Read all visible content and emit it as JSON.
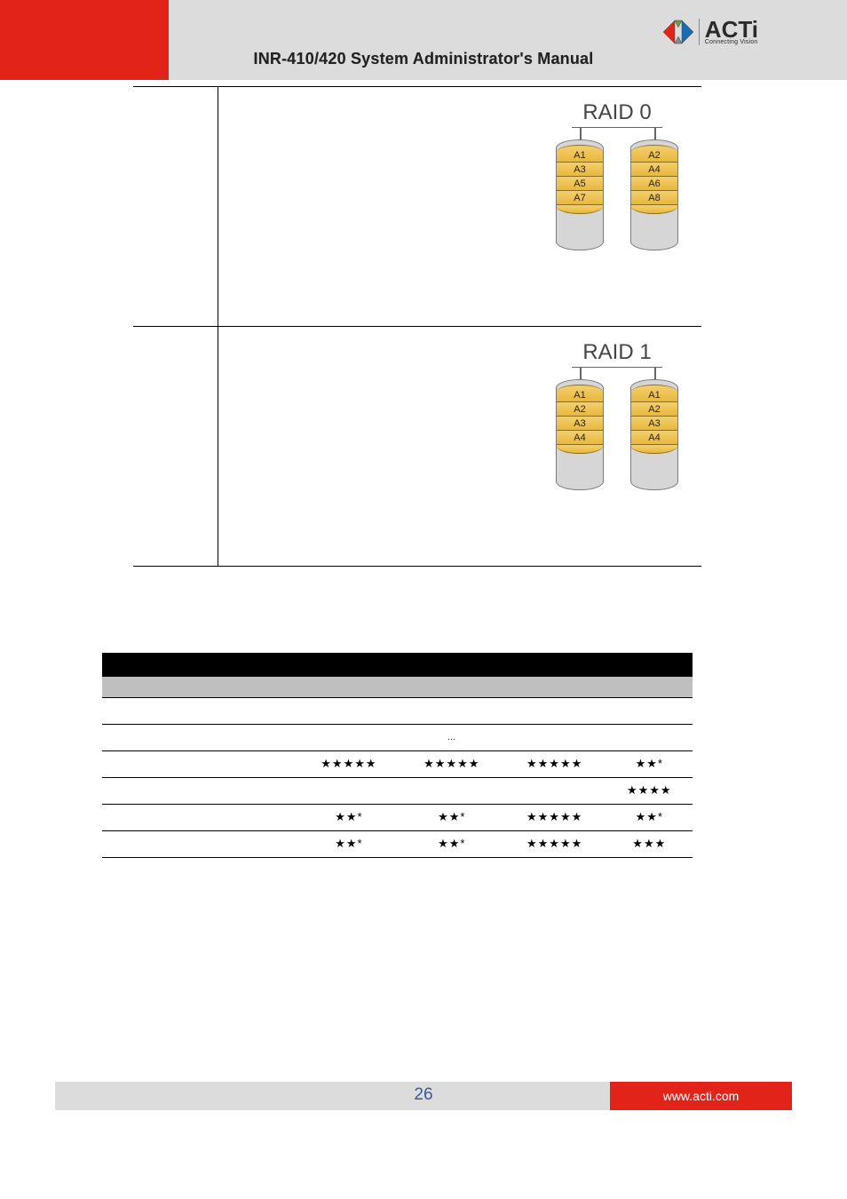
{
  "header": {
    "title": "INR-410/420 System Administrator's Manual",
    "logo_text": "ACTi",
    "logo_tagline": "Connecting Vision"
  },
  "raid_levels": [
    {
      "title": "RAID 0",
      "disks": [
        {
          "segments": [
            "A1",
            "A3",
            "A5",
            "A7"
          ]
        },
        {
          "segments": [
            "A2",
            "A4",
            "A6",
            "A8"
          ]
        }
      ]
    },
    {
      "title": "RAID 1",
      "disks": [
        {
          "segments": [
            "A1",
            "A2",
            "A3",
            "A4"
          ]
        },
        {
          "segments": [
            "A1",
            "A2",
            "A3",
            "A4"
          ]
        }
      ]
    }
  ],
  "comparison": {
    "columns": [
      "",
      "",
      "",
      "",
      ""
    ],
    "subcolumns": [
      "",
      "",
      "",
      "",
      ""
    ],
    "rows": [
      {
        "label": "",
        "cells": [
          "",
          "",
          "",
          ""
        ]
      },
      {
        "label": "",
        "cells": [
          "",
          "…",
          "",
          ""
        ]
      },
      {
        "label": "",
        "cells": [
          "★★★★★",
          "★★★★★",
          "★★★★★",
          "★★*"
        ]
      },
      {
        "label": "",
        "cells": [
          "",
          "",
          "",
          "★★★★"
        ]
      },
      {
        "label": "",
        "cells": [
          "★★*",
          "★★*",
          "★★★★★",
          "★★*"
        ]
      },
      {
        "label": "",
        "cells": [
          "★★*",
          "★★*",
          "★★★★★",
          "★★★"
        ]
      }
    ]
  },
  "footer": {
    "page_number": "26",
    "url": "www.acti.com"
  },
  "colors": {
    "red": "#e2231a",
    "header_gray": "#dcdcdc",
    "disk_fill": "#f3cf6d",
    "disk_stroke": "#8c6e1e",
    "disk_body": "#d6d6d6",
    "pagenum": "#3a5a9a"
  }
}
